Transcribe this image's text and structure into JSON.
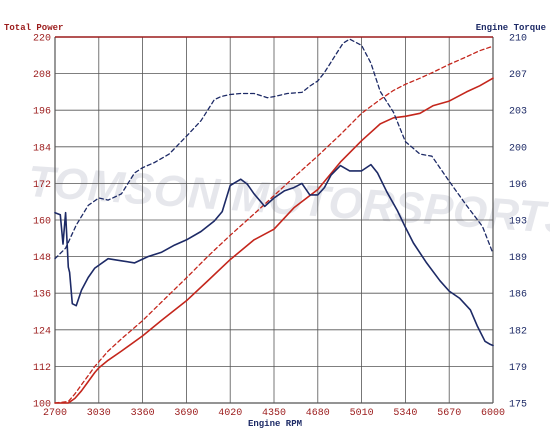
{
  "chart_data": {
    "type": "line",
    "title": "",
    "left_axis_title": "Total Power",
    "right_axis_title": "Engine Torque",
    "xlabel": "Engine RPM",
    "x_ticks": [
      "2700",
      "3030",
      "3360",
      "3690",
      "4020",
      "4350",
      "4680",
      "5010",
      "5340",
      "5670",
      "6000"
    ],
    "y_left_ticks": [
      "100",
      "112",
      "124",
      "136",
      "148",
      "160",
      "172",
      "184",
      "196",
      "208",
      "220"
    ],
    "y_right_ticks": [
      "175",
      "179",
      "182",
      "186",
      "189",
      "193",
      "196",
      "200",
      "203",
      "207",
      "210"
    ],
    "xlim": [
      2700,
      6000
    ],
    "ylim_left": [
      100,
      220
    ],
    "ylim_right": [
      175,
      210
    ],
    "grid": true,
    "watermark": "TOMSON MOTORSPORTS",
    "colors": {
      "power": "#c4261c",
      "torque": "#1d2a66",
      "grid": "#555555",
      "frame_top": "#9b1b1b"
    },
    "series": [
      {
        "key": "power_solid",
        "axis": "left",
        "style": "solid",
        "color": "#c4261c",
        "x": [
          2700,
          2800,
          2850,
          2900,
          2950,
          3000,
          3030,
          3100,
          3200,
          3360,
          3500,
          3690,
          3850,
          4020,
          4200,
          4350,
          4500,
          4680,
          4850,
          5010,
          5150,
          5250,
          5340,
          5450,
          5550,
          5670,
          5800,
          5900,
          6000
        ],
        "y": [
          100,
          100,
          101.5,
          104,
          107,
          110,
          111.5,
          114,
          117,
          122,
          127,
          133.5,
          140,
          147,
          153.5,
          157,
          164,
          170,
          179,
          186,
          191.5,
          193.5,
          194,
          195,
          197.5,
          199,
          202,
          204,
          206.5
        ]
      },
      {
        "key": "power_dashed",
        "axis": "left",
        "style": "dashed",
        "color": "#c4261c",
        "x": [
          2700,
          2800,
          2850,
          2900,
          2950,
          3000,
          3030,
          3100,
          3200,
          3360,
          3500,
          3690,
          3850,
          4020,
          4200,
          4350,
          4500,
          4680,
          4850,
          5010,
          5150,
          5250,
          5340,
          5450,
          5550,
          5670,
          5800,
          5900,
          6000
        ],
        "y": [
          100,
          100.5,
          103,
          106,
          109,
          112,
          113.5,
          117,
          121,
          127,
          133,
          141,
          148,
          155,
          162,
          168,
          174,
          181,
          188,
          195,
          199.5,
          202.5,
          204.5,
          206.5,
          208.5,
          211,
          213.5,
          215.5,
          217
        ]
      },
      {
        "key": "torque_solid",
        "axis": "right",
        "style": "solid",
        "color": "#1d2a66",
        "x": [
          2700,
          2740,
          2760,
          2780,
          2800,
          2810,
          2830,
          2860,
          2900,
          2950,
          3000,
          3100,
          3200,
          3300,
          3400,
          3500,
          3600,
          3690,
          3800,
          3900,
          3960,
          4020,
          4100,
          4150,
          4200,
          4280,
          4350,
          4430,
          4500,
          4560,
          4620,
          4680,
          4730,
          4780,
          4850,
          4920,
          5010,
          5080,
          5130,
          5200,
          5280,
          5340,
          5400,
          5500,
          5600,
          5670,
          5750,
          5830,
          5880,
          5940,
          5980,
          6000
        ],
        "y": [
          193.2,
          193.0,
          190.2,
          193.2,
          188.0,
          187.5,
          184.5,
          184.3,
          185.8,
          187.0,
          187.9,
          188.8,
          188.6,
          188.4,
          189.0,
          189.4,
          190.1,
          190.6,
          191.4,
          192.4,
          193.3,
          195.8,
          196.4,
          195.9,
          195.0,
          193.8,
          194.6,
          195.3,
          195.6,
          196.0,
          194.9,
          194.9,
          195.6,
          196.8,
          197.7,
          197.2,
          197.2,
          197.8,
          197.0,
          195.2,
          193.4,
          191.8,
          190.3,
          188.4,
          186.7,
          185.7,
          185.0,
          183.9,
          182.4,
          180.9,
          180.6,
          180.5
        ]
      },
      {
        "key": "torque_dashed",
        "axis": "right",
        "style": "dashed",
        "color": "#1d2a66",
        "x": [
          2700,
          2780,
          2860,
          2950,
          3030,
          3100,
          3200,
          3300,
          3360,
          3450,
          3560,
          3690,
          3800,
          3900,
          3950,
          4020,
          4100,
          4200,
          4300,
          4350,
          4450,
          4560,
          4620,
          4680,
          4730,
          4800,
          4870,
          4920,
          5010,
          5080,
          5150,
          5250,
          5340,
          5450,
          5540,
          5670,
          5800,
          5920,
          6000
        ],
        "y": [
          188.8,
          189.8,
          192.0,
          193.9,
          194.6,
          194.4,
          195.0,
          197.0,
          197.5,
          198.0,
          198.8,
          200.5,
          202.0,
          204.0,
          204.3,
          204.5,
          204.6,
          204.6,
          204.2,
          204.3,
          204.6,
          204.7,
          205.3,
          205.8,
          206.6,
          208.0,
          209.4,
          209.8,
          209.2,
          207.5,
          204.8,
          202.8,
          200.0,
          198.8,
          198.6,
          196.2,
          193.9,
          191.9,
          189.3
        ]
      }
    ]
  }
}
